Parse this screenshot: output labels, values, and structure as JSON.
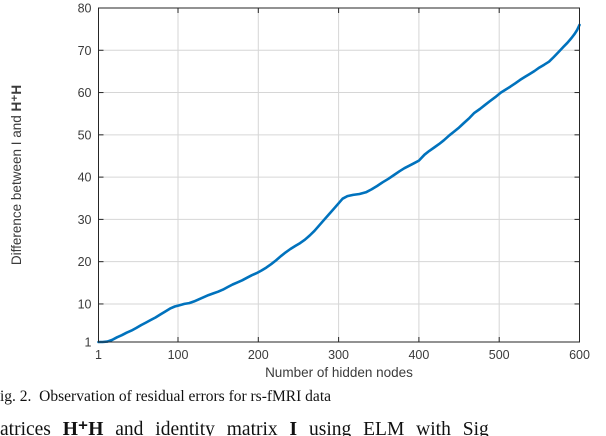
{
  "figure": {
    "caption": "ig. 2.  Observation of residual errors for rs-fMRI data",
    "body_line": {
      "segments": [
        "atrices ",
        "H⁺H",
        " and identity matrix ",
        "I",
        " using ELM with Sig"
      ]
    }
  },
  "chart_data": {
    "type": "line",
    "title": "",
    "xlabel": "Number of hidden nodes",
    "ylabel_prefix": "Difference between I and ",
    "ylabel_bold": "H⁺H",
    "xlim": [
      1,
      600
    ],
    "ylim": [
      1,
      80
    ],
    "xticks": [
      1,
      100,
      200,
      300,
      400,
      500,
      600
    ],
    "yticks": [
      1,
      10,
      20,
      30,
      40,
      50,
      60,
      70,
      80
    ],
    "grid": true,
    "legend": null,
    "colors": {
      "line": "#0072BD",
      "grid": "#d6d6d6",
      "axis": "#262626",
      "tick_label": "#3b3b3b"
    },
    "series": [
      {
        "x": [
          1,
          6,
          12,
          18,
          24,
          30,
          36,
          42,
          48,
          54,
          60,
          66,
          72,
          78,
          84,
          90,
          96,
          102,
          108,
          114,
          120,
          126,
          132,
          138,
          144,
          150,
          156,
          162,
          168,
          174,
          180,
          186,
          192,
          198,
          204,
          210,
          216,
          222,
          228,
          234,
          240,
          246,
          252,
          258,
          264,
          270,
          276,
          282,
          288,
          294,
          300,
          305,
          311,
          318,
          326,
          334,
          341,
          348,
          355,
          362,
          369,
          376,
          382,
          388,
          394,
          400,
          407,
          413,
          419,
          425,
          431,
          438,
          444,
          450,
          456,
          463,
          469,
          476,
          482,
          488,
          495,
          502,
          508,
          514,
          520,
          526,
          532,
          538,
          544,
          550,
          556,
          562,
          568,
          574,
          580,
          585,
          590,
          594,
          597,
          600
        ],
        "y": [
          1.0,
          1.0,
          1.1,
          1.5,
          2.1,
          2.6,
          3.2,
          3.7,
          4.3,
          5.0,
          5.6,
          6.2,
          6.8,
          7.5,
          8.2,
          8.9,
          9.4,
          9.7,
          10.0,
          10.2,
          10.6,
          11.1,
          11.6,
          12.1,
          12.5,
          12.9,
          13.4,
          14.0,
          14.6,
          15.1,
          15.6,
          16.2,
          16.8,
          17.3,
          17.9,
          18.6,
          19.4,
          20.3,
          21.3,
          22.2,
          23.0,
          23.7,
          24.4,
          25.2,
          26.2,
          27.3,
          28.6,
          29.9,
          31.2,
          32.5,
          33.8,
          34.9,
          35.5,
          35.8,
          36.0,
          36.4,
          37.1,
          37.9,
          38.8,
          39.6,
          40.5,
          41.4,
          42.1,
          42.7,
          43.3,
          43.9,
          45.3,
          46.2,
          47.0,
          47.8,
          48.7,
          49.9,
          50.8,
          51.7,
          52.8,
          54.0,
          55.2,
          56.1,
          57.0,
          57.9,
          58.9,
          60.0,
          60.7,
          61.4,
          62.2,
          63.0,
          63.7,
          64.4,
          65.1,
          65.9,
          66.6,
          67.3,
          68.4,
          69.6,
          70.8,
          71.8,
          72.9,
          73.9,
          74.8,
          76.0
        ]
      }
    ]
  }
}
